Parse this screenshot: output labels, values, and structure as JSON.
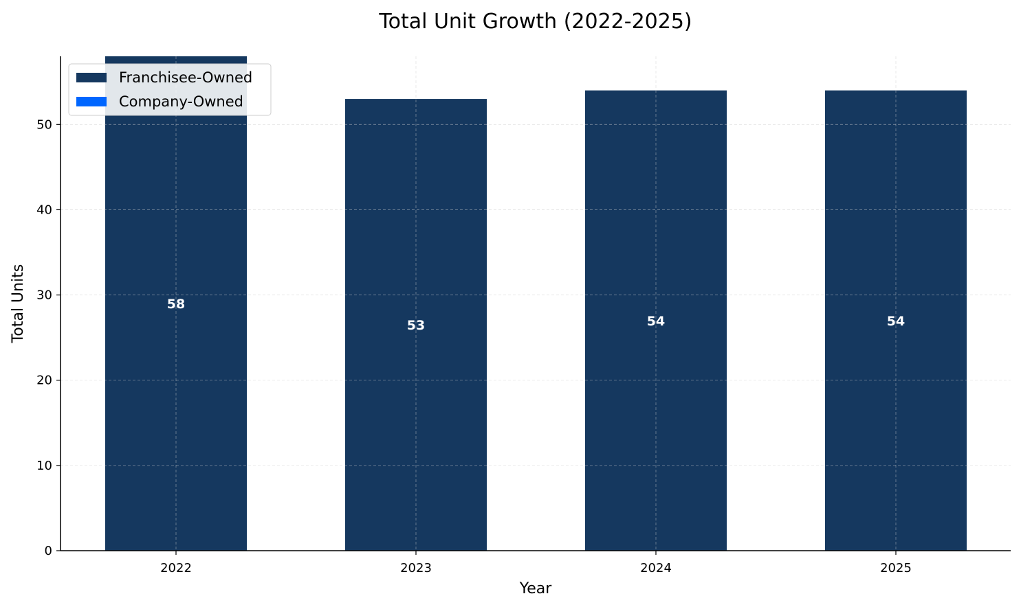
{
  "chart_data": {
    "type": "bar",
    "title": "Total Unit Growth (2022-2025)",
    "xlabel": "Year",
    "ylabel": "Total Units",
    "categories": [
      "2022",
      "2023",
      "2024",
      "2025"
    ],
    "series": [
      {
        "name": "Franchisee-Owned",
        "color": "#15385f",
        "values": [
          58,
          53,
          54,
          54
        ]
      },
      {
        "name": "Company-Owned",
        "color": "#0066ff",
        "values": [
          0,
          0,
          0,
          0
        ]
      }
    ],
    "data_labels": [
      "58",
      "53",
      "54",
      "54"
    ],
    "ylim": [
      0,
      58
    ],
    "yticks": [
      0,
      10,
      20,
      30,
      40,
      50
    ],
    "grid": true,
    "legend_position": "top-left"
  }
}
